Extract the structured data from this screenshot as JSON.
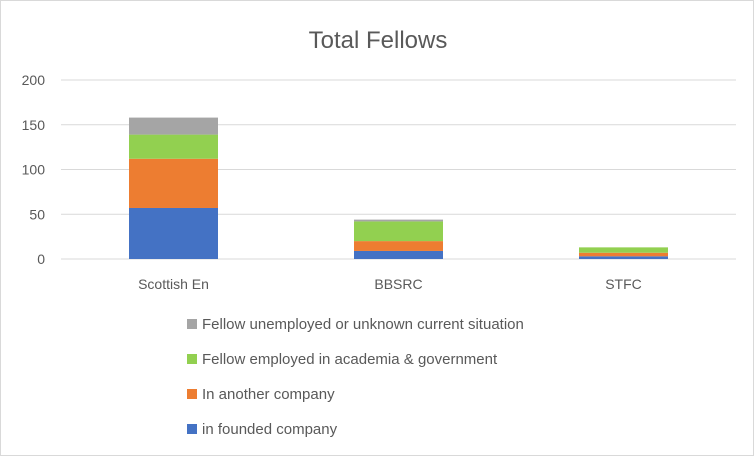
{
  "chart_data": {
    "type": "bar",
    "stacked": true,
    "title": "Total Fellows",
    "xlabel": "",
    "ylabel": "",
    "ylim": [
      0,
      200
    ],
    "yticks": [
      0,
      50,
      100,
      150,
      200
    ],
    "grid": true,
    "legend_position": "bottom",
    "categories": [
      "Scottish En",
      "BBSRC",
      "STFC"
    ],
    "series": [
      {
        "name": "in founded company",
        "color": "#4472c4",
        "values": [
          57,
          9,
          3
        ]
      },
      {
        "name": "In another company",
        "color": "#ed7d31",
        "values": [
          55,
          11,
          4
        ]
      },
      {
        "name": "Fellow employed in academia & government",
        "color": "#92d050",
        "values": [
          27,
          22,
          6
        ]
      },
      {
        "name": "Fellow unemployed or unknown current situation",
        "color": "#a5a5a5",
        "values": [
          19,
          2,
          0
        ]
      }
    ]
  }
}
